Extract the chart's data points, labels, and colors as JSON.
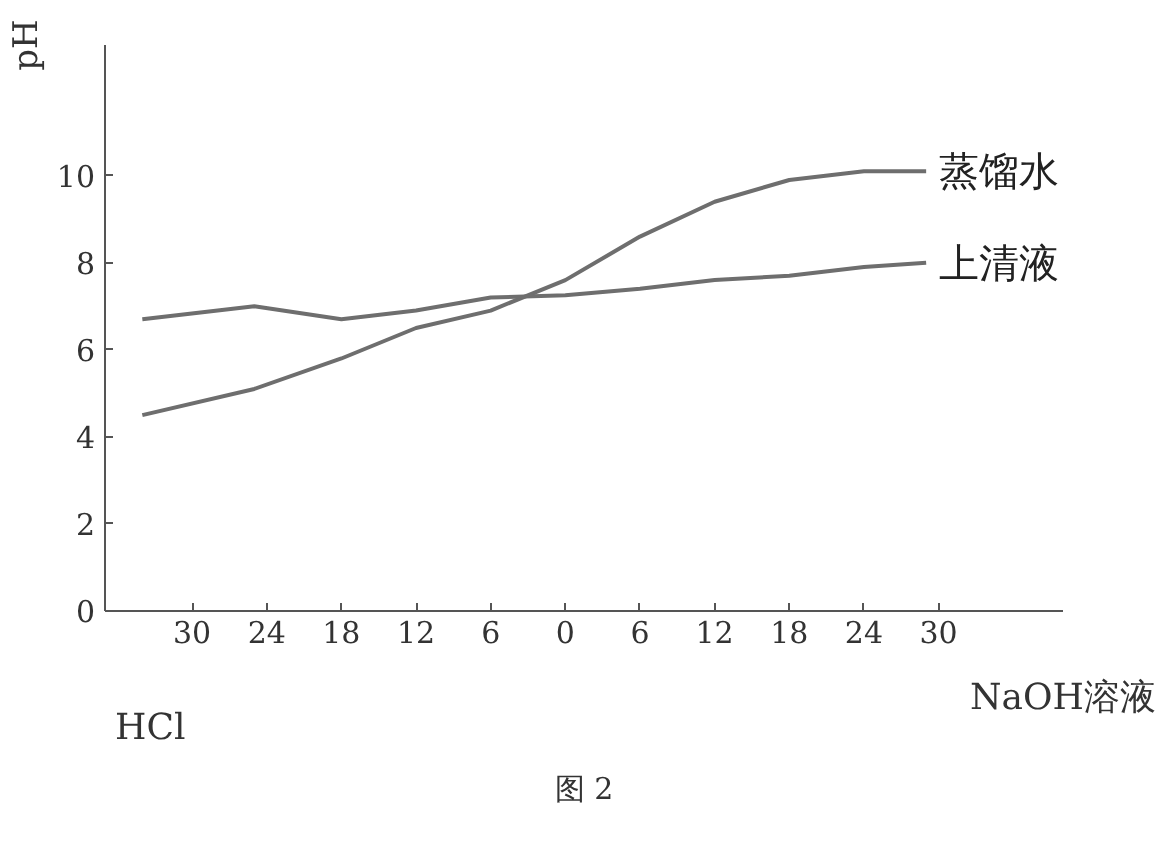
{
  "chart_data": {
    "type": "line",
    "ylabel": "pH",
    "xlabel": "NaOH溶液",
    "annotations": [
      "HCl",
      "图 2"
    ],
    "xlim": [
      -37,
      40
    ],
    "ylim": [
      0,
      13
    ],
    "xticks": [
      {
        "value": -30,
        "label": "30"
      },
      {
        "value": -24,
        "label": "24"
      },
      {
        "value": -18,
        "label": "18"
      },
      {
        "value": -12,
        "label": "12"
      },
      {
        "value": -6,
        "label": "6"
      },
      0,
      6,
      12,
      18,
      24,
      30
    ],
    "yticks": [
      0,
      2,
      4,
      6,
      8,
      10
    ],
    "x": [
      -34,
      -25,
      -18,
      -12,
      -6,
      0,
      6,
      12,
      18,
      24,
      29
    ],
    "series": [
      {
        "name": "蒸馏水",
        "color": "#6e6e6e",
        "values": [
          4.5,
          5.1,
          5.8,
          6.5,
          6.9,
          7.6,
          8.6,
          9.4,
          9.9,
          10.1,
          10.1
        ]
      },
      {
        "name": "上清液",
        "color": "#6e6e6e",
        "values": [
          6.7,
          7.0,
          6.7,
          6.9,
          7.2,
          7.25,
          7.4,
          7.6,
          7.7,
          7.9,
          8.0
        ]
      }
    ],
    "grid": false,
    "marker": "none",
    "line_style": "solid"
  }
}
